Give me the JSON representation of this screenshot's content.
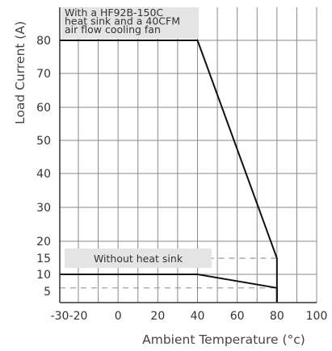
{
  "chart_data": {
    "type": "line",
    "xlabel": "Ambient Temperature (°c)",
    "ylabel": "Load Current (A)",
    "xlim": [
      -30,
      100
    ],
    "ylim": [
      0,
      85
    ],
    "x_ticks": [
      -30,
      -20,
      0,
      20,
      40,
      60,
      80,
      100
    ],
    "x_tick_labels": [
      "-30",
      "-20",
      "0",
      "20",
      "40",
      "60",
      "80",
      "100"
    ],
    "x_grid": [
      -30,
      -20,
      -10,
      0,
      10,
      20,
      30,
      40,
      50,
      60,
      70,
      80,
      90,
      100
    ],
    "y_ticks": [
      5,
      10,
      15,
      20,
      30,
      40,
      50,
      60,
      70,
      80
    ],
    "y_tick_labels": [
      "5",
      "10",
      "15",
      "20",
      "30",
      "40",
      "50",
      "60",
      "70",
      "80"
    ],
    "y_grid": [
      10,
      20,
      30,
      40,
      50,
      60,
      70,
      80
    ],
    "grid": true,
    "series": [
      {
        "annotation": [
          "With a HF92B-150C",
          "heat sink  and a 40CFM",
          "air flow cooling fan"
        ],
        "x": [
          -30,
          40,
          80,
          80
        ],
        "y": [
          80,
          80,
          15,
          0
        ],
        "color": "#111111"
      },
      {
        "annotation": [
          "Without heat sink"
        ],
        "x": [
          -30,
          40,
          80,
          80
        ],
        "y": [
          10,
          10,
          6,
          0
        ],
        "color": "#111111"
      }
    ],
    "reference_lines": [
      {
        "y": 15,
        "x_from": 40,
        "x_to": 80,
        "style": "dashed"
      },
      {
        "y": 6,
        "x_from": -30,
        "x_to": 80,
        "style": "dashed"
      }
    ],
    "colors": {
      "grid": "#888888",
      "axis": "#333333",
      "annotation_box": "#e4e4e4",
      "dashed": "#999999"
    }
  }
}
